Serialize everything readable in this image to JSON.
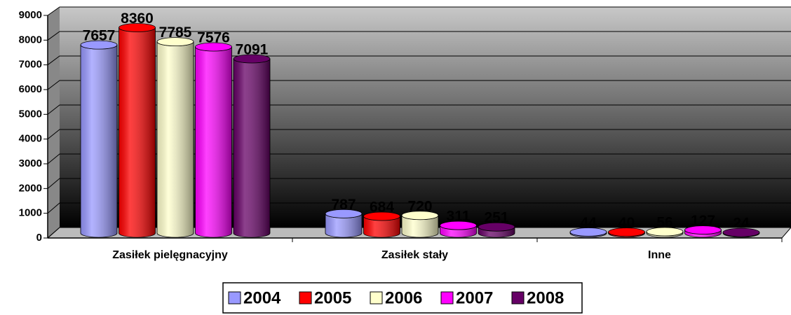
{
  "chart_data": {
    "type": "bar3d",
    "categories": [
      "Zasiłek pielęgnacyjny",
      "Zasiłek stały",
      "Inne"
    ],
    "series": [
      {
        "name": "2004",
        "color": "#9999ff",
        "values": [
          7657,
          787,
          44
        ]
      },
      {
        "name": "2005",
        "color": "#ff0000",
        "values": [
          8360,
          684,
          40
        ]
      },
      {
        "name": "2006",
        "color": "#ffffcc",
        "values": [
          7785,
          720,
          56
        ]
      },
      {
        "name": "2007",
        "color": "#ff00ff",
        "values": [
          7576,
          311,
          127
        ]
      },
      {
        "name": "2008",
        "color": "#660066",
        "values": [
          7091,
          251,
          24
        ]
      }
    ],
    "ylim": [
      0,
      9000
    ],
    "yticks": [
      0,
      1000,
      2000,
      3000,
      4000,
      5000,
      6000,
      7000,
      8000,
      9000
    ],
    "grid": true,
    "legend": "bottom"
  }
}
